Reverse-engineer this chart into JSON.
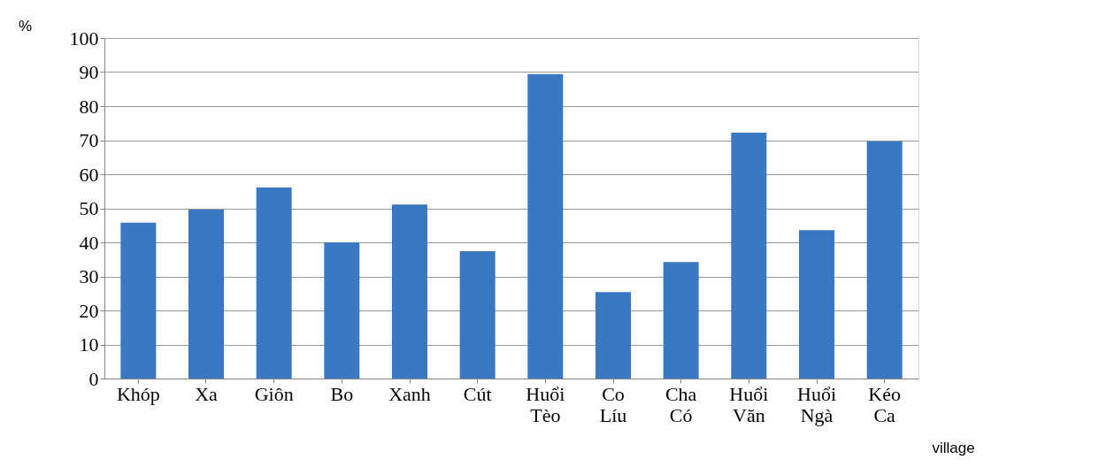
{
  "chart_data": {
    "type": "bar",
    "xlabel": "village",
    "ylabel": "%",
    "categories": [
      "Khóp",
      "Xa",
      "Giôn",
      "Bo",
      "Xanh",
      "Cút",
      "Huổi Tèo",
      "Co Líu",
      "Cha Có",
      "Huổi Văn",
      "Huổi Ngà",
      "Kéo Ca"
    ],
    "values": [
      45.8,
      49.6,
      56.1,
      40,
      51.1,
      37.4,
      89.4,
      25.4,
      34.2,
      72.2,
      43.6,
      69.7
    ],
    "color": "#3a78c4",
    "ylim": [
      0,
      100
    ],
    "yticks": [
      0,
      10,
      20,
      30,
      40,
      50,
      60,
      70,
      80,
      90,
      100
    ],
    "grid": "y"
  }
}
